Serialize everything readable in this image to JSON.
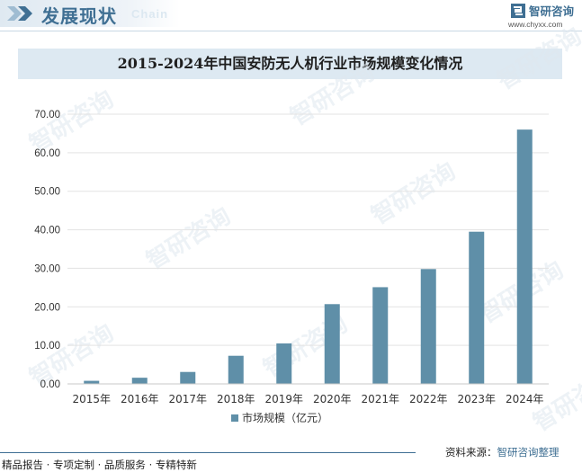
{
  "header": {
    "title": "发展现状",
    "subtitle": "Chain",
    "brand_name": "智研咨询",
    "brand_url": "www.chyxx.com"
  },
  "footer": {
    "services": "精品报告 · 专项定制 · 品质服务 · 专精特新",
    "source_label": "资料来源：",
    "source_org": "智研咨询整理"
  },
  "watermark_text": "智研咨询",
  "colors": {
    "brand": "#3f6f93",
    "bar": "#5f8fa8",
    "title_band": "#dde9f2"
  },
  "chart_data": {
    "type": "bar",
    "title": "2015-2024年中国安防无人机行业市场规模变化情况",
    "categories": [
      "2015年",
      "2016年",
      "2017年",
      "2018年",
      "2019年",
      "2020年",
      "2021年",
      "2022年",
      "2023年",
      "2024年"
    ],
    "series": [
      {
        "name": "市场规模（亿元）",
        "values": [
          0.8,
          1.6,
          3.1,
          7.3,
          10.5,
          20.7,
          25.1,
          29.8,
          39.5,
          66.0
        ]
      }
    ],
    "ylim": [
      0,
      70
    ],
    "yticks": [
      "0.00",
      "10.00",
      "20.00",
      "30.00",
      "40.00",
      "50.00",
      "60.00",
      "70.00"
    ],
    "xlabel": "",
    "ylabel": "",
    "grid": true,
    "legend": "bottom-center"
  }
}
